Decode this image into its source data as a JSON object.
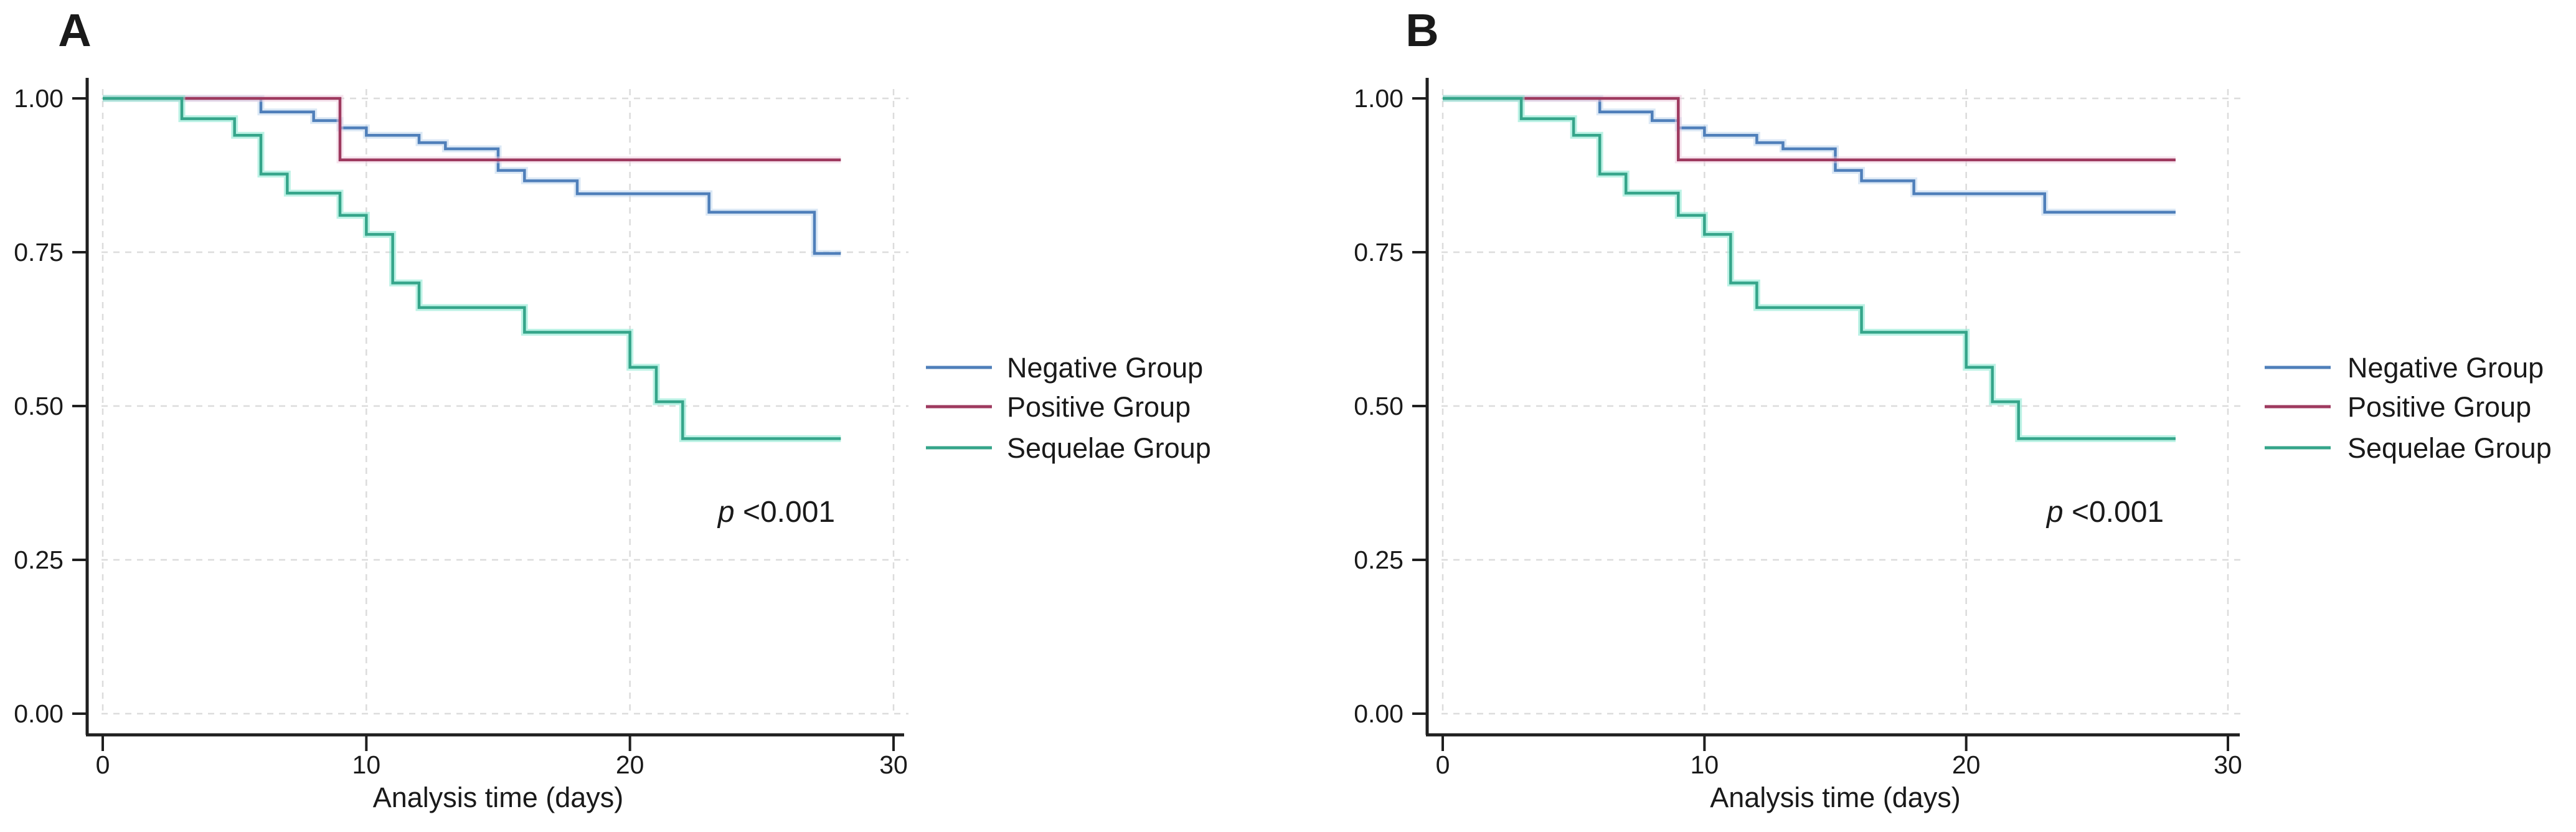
{
  "figure": {
    "background": "#ffffff",
    "description": "Two Kaplan-Meier survival panels comparing Negative, Positive and Sequelae groups"
  },
  "colors": {
    "negative": "#4f7fba",
    "positive": "#9e3a5f",
    "sequelae": "#35a58a",
    "negative_halo": "#bdd5ec",
    "positive_halo": "#eecade",
    "sequelae_halo": "#8fe9d4",
    "axis": "#1f1f1f",
    "grid": "#dcdcdc",
    "text": "#1a1a1a"
  },
  "chart_data": [
    {
      "panel": "A",
      "type": "line",
      "subtype": "kaplan-meier-step",
      "title": "A",
      "xlabel": "Analysis time (days)",
      "ylabel": "",
      "xlim": [
        0,
        30
      ],
      "ylim": [
        0.0,
        1.0
      ],
      "x_ticks": [
        "0",
        "10",
        "20",
        "30"
      ],
      "x_tick_values": [
        0,
        10,
        20,
        30
      ],
      "y_ticks": [
        "0.00",
        "0.25",
        "0.50",
        "0.75",
        "1.00"
      ],
      "y_tick_values": [
        0,
        0.25,
        0.5,
        0.75,
        1
      ],
      "grid": true,
      "legend_position": "right-outside",
      "annotation_italic": "p",
      "annotation_rest": " <0.001",
      "series": [
        {
          "name": "Negative Group",
          "color_key": "negative",
          "end_x": 28,
          "steps": [
            [
              0,
              1.0
            ],
            [
              6,
              0.978
            ],
            [
              8,
              0.964
            ],
            [
              9,
              0.952
            ],
            [
              10,
              0.94
            ],
            [
              12,
              0.928
            ],
            [
              13,
              0.918
            ],
            [
              15,
              0.883
            ],
            [
              16,
              0.866
            ],
            [
              18,
              0.845
            ],
            [
              23,
              0.815
            ],
            [
              27,
              0.748
            ]
          ]
        },
        {
          "name": "Positive Group",
          "color_key": "positive",
          "end_x": 28,
          "steps": [
            [
              0,
              1.0
            ],
            [
              9,
              0.9
            ]
          ]
        },
        {
          "name": "Sequelae Group",
          "color_key": "sequelae",
          "end_x": 28,
          "steps": [
            [
              0,
              1.0
            ],
            [
              3,
              0.967
            ],
            [
              5,
              0.94
            ],
            [
              6,
              0.877
            ],
            [
              7,
              0.846
            ],
            [
              9,
              0.81
            ],
            [
              10,
              0.779
            ],
            [
              11,
              0.7
            ],
            [
              12,
              0.66
            ],
            [
              16,
              0.62
            ],
            [
              20,
              0.563
            ],
            [
              21,
              0.507
            ],
            [
              22,
              0.447
            ]
          ]
        }
      ]
    },
    {
      "panel": "B",
      "type": "line",
      "subtype": "kaplan-meier-step",
      "title": "B",
      "xlabel": "Analysis time (days)",
      "ylabel": "",
      "xlim": [
        0,
        30
      ],
      "ylim": [
        0.0,
        1.0
      ],
      "x_ticks": [
        "0",
        "10",
        "20",
        "30"
      ],
      "x_tick_values": [
        0,
        10,
        20,
        30
      ],
      "y_ticks": [
        "0.00",
        "0.25",
        "0.50",
        "0.75",
        "1.00"
      ],
      "y_tick_values": [
        0,
        0.25,
        0.5,
        0.75,
        1
      ],
      "grid": true,
      "legend_position": "right-outside",
      "annotation_italic": "p",
      "annotation_rest": " <0.001",
      "series": [
        {
          "name": "Negative Group",
          "color_key": "negative",
          "end_x": 28,
          "steps": [
            [
              0,
              1.0
            ],
            [
              6,
              0.978
            ],
            [
              8,
              0.964
            ],
            [
              9,
              0.952
            ],
            [
              10,
              0.94
            ],
            [
              12,
              0.928
            ],
            [
              13,
              0.918
            ],
            [
              15,
              0.883
            ],
            [
              16,
              0.866
            ],
            [
              18,
              0.845
            ],
            [
              23,
              0.815
            ]
          ]
        },
        {
          "name": "Positive Group",
          "color_key": "positive",
          "end_x": 28,
          "steps": [
            [
              0,
              1.0
            ],
            [
              9,
              0.9
            ]
          ]
        },
        {
          "name": "Sequelae Group",
          "color_key": "sequelae",
          "end_x": 28,
          "steps": [
            [
              0,
              1.0
            ],
            [
              3,
              0.967
            ],
            [
              5,
              0.94
            ],
            [
              6,
              0.877
            ],
            [
              7,
              0.846
            ],
            [
              9,
              0.81
            ],
            [
              10,
              0.779
            ],
            [
              11,
              0.7
            ],
            [
              12,
              0.66
            ],
            [
              16,
              0.62
            ],
            [
              20,
              0.563
            ],
            [
              21,
              0.507
            ],
            [
              22,
              0.447
            ]
          ]
        }
      ]
    }
  ]
}
